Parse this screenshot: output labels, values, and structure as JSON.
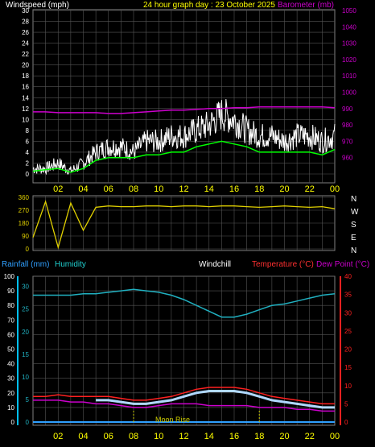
{
  "header": {
    "left_label": "Windspeed (mph)",
    "title": "24 hour graph day : 23 October 2025",
    "right_label": "Barometer (mb)"
  },
  "colors": {
    "background": "#000000",
    "grid": "#555555",
    "axis": "#808080",
    "windspeed": "#ffffff",
    "wind_avg": "#00ff00",
    "barometer": "#cc00cc",
    "direction": "#e0d000",
    "humidity": "#20b0c0",
    "rainfall": "#30a0ff",
    "windchill": "#ffffff",
    "temperature": "#ff2020",
    "dewpoint": "#cc00cc",
    "time_labels": "#ffff00",
    "moon": "#cccc00"
  },
  "x_ticks": [
    "02",
    "04",
    "06",
    "08",
    "10",
    "12",
    "14",
    "16",
    "18",
    "20",
    "22",
    "00"
  ],
  "wind_panel": {
    "left_ticks": [
      "0",
      "2",
      "4",
      "6",
      "8",
      "10",
      "12",
      "14",
      "16",
      "18",
      "20",
      "22",
      "24",
      "26",
      "28",
      "30"
    ],
    "right_ticks": [
      "960",
      "970",
      "980",
      "990",
      "1000",
      "1010",
      "1020",
      "1030",
      "1040",
      "1050"
    ]
  },
  "direction_panel": {
    "left_ticks": [
      "0",
      "90",
      "180",
      "270",
      "360"
    ],
    "compass": [
      "N",
      "W",
      "S",
      "E",
      "N"
    ]
  },
  "bottom_panel": {
    "legend": {
      "rainfall": "Rainfall (mm)",
      "humidity": "Humidity",
      "windchill": "Windchill",
      "temperature": "Temperature (°C)",
      "dewpoint": "Dew Point (°C)"
    },
    "left_ticks": [
      "0",
      "10",
      "20",
      "30",
      "40",
      "50",
      "60",
      "70",
      "80",
      "90",
      "100"
    ],
    "rain_ticks": [
      "0",
      "5",
      "10",
      "15",
      "20",
      "25",
      "30"
    ],
    "right_ticks": [
      "0",
      "5",
      "10",
      "15",
      "20",
      "25",
      "30",
      "35",
      "40"
    ],
    "moon_rise_label": "Moon Rise"
  },
  "chart_data": [
    {
      "type": "line",
      "title": "24 hour graph day : 23 October 2025",
      "xlabel": "",
      "ylabel": "Windspeed (mph)",
      "ylim": [
        0,
        30
      ],
      "y2label": "Barometer (mb)",
      "y2lim": [
        950,
        1050
      ],
      "x_hours": [
        0,
        1,
        2,
        3,
        4,
        5,
        6,
        7,
        8,
        9,
        10,
        11,
        12,
        13,
        14,
        15,
        16,
        17,
        18,
        19,
        20,
        21,
        22,
        23,
        24
      ],
      "series": [
        {
          "name": "Windspeed (mph)",
          "axis": "left",
          "values": [
            1,
            1,
            2,
            0.5,
            2,
            4,
            5,
            5,
            4,
            6,
            6,
            7,
            7,
            8,
            9,
            11,
            10,
            8,
            7,
            7,
            6,
            7,
            7,
            6,
            7
          ]
        },
        {
          "name": "",
          "axis": "left",
          "values": [
            0.5,
            0.8,
            1,
            0.3,
            1,
            2.5,
            3,
            3,
            3,
            3.5,
            3.5,
            4,
            4,
            5,
            5.5,
            6,
            5.5,
            5,
            4,
            4,
            4,
            4,
            4,
            3.5,
            4.5
          ]
        },
        {
          "name": "Barometer (mb)",
          "axis": "right",
          "values": [
            988,
            988,
            987.5,
            987.5,
            987.5,
            987.5,
            987,
            987,
            987.5,
            988,
            988.5,
            989,
            989,
            989.5,
            990,
            990,
            990.5,
            990.5,
            991,
            991,
            991,
            991,
            991,
            991,
            990.5
          ]
        }
      ]
    },
    {
      "type": "line",
      "ylabel": "Wind direction (degrees)",
      "ylim": [
        0,
        360
      ],
      "x_hours": [
        0,
        1,
        2,
        3,
        4,
        5,
        6,
        7,
        8,
        9,
        10,
        11,
        12,
        13,
        14,
        15,
        16,
        17,
        18,
        19,
        20,
        21,
        22,
        23,
        24
      ],
      "series": [
        {
          "name": "",
          "values": [
            80,
            330,
            10,
            320,
            130,
            290,
            300,
            295,
            295,
            300,
            300,
            295,
            300,
            300,
            295,
            300,
            300,
            295,
            290,
            295,
            300,
            295,
            290,
            295,
            280
          ]
        }
      ]
    },
    {
      "type": "line",
      "ylabel": "Humidity (%)",
      "ylim": [
        0,
        100
      ],
      "y2label": "Temperature (°C)",
      "y2lim": [
        0,
        40
      ],
      "x_hours": [
        0,
        1,
        2,
        3,
        4,
        5,
        6,
        7,
        8,
        9,
        10,
        11,
        12,
        13,
        14,
        15,
        16,
        17,
        18,
        19,
        20,
        21,
        22,
        23,
        24
      ],
      "series": [
        {
          "name": "Humidity",
          "axis": "left",
          "values": [
            87,
            87,
            87,
            87,
            88,
            88,
            89,
            90,
            91,
            90,
            89,
            87,
            84,
            80,
            76,
            72,
            72,
            74,
            77,
            80,
            81,
            83,
            85,
            87,
            88
          ]
        },
        {
          "name": "Temperature (°C)",
          "axis": "right",
          "values": [
            7,
            7,
            7.5,
            7,
            7,
            7,
            7,
            6.5,
            6,
            6,
            6.5,
            7,
            8,
            9,
            9.5,
            9.5,
            9.5,
            9,
            8,
            7,
            6.5,
            6,
            5.5,
            5,
            5
          ]
        },
        {
          "name": "Windchill",
          "axis": "right",
          "values": [
            null,
            null,
            null,
            null,
            null,
            6,
            6,
            5.5,
            5,
            5,
            5.5,
            6,
            7,
            8,
            8.5,
            8.5,
            8.5,
            8,
            7,
            6,
            5.5,
            5,
            4.5,
            4,
            4
          ]
        },
        {
          "name": "Dew Point (°C)",
          "axis": "right",
          "values": [
            6,
            6,
            6,
            5.5,
            5.5,
            5,
            5,
            4.5,
            4,
            4,
            4.5,
            5,
            5,
            5,
            4.5,
            4.5,
            4.5,
            4.5,
            4,
            4,
            4,
            3.5,
            3.5,
            3,
            3
          ]
        },
        {
          "name": "Rainfall (mm)",
          "axis": "rain",
          "values": [
            0,
            0,
            0,
            0,
            0,
            0,
            0,
            0,
            0,
            0,
            0,
            0,
            0,
            0,
            0,
            0,
            0,
            0,
            0,
            0,
            0,
            0,
            0,
            0,
            0
          ]
        }
      ],
      "annotations": [
        {
          "label": "Moon Rise",
          "hour": 8
        },
        {
          "label": "",
          "hour": 18
        }
      ]
    }
  ]
}
